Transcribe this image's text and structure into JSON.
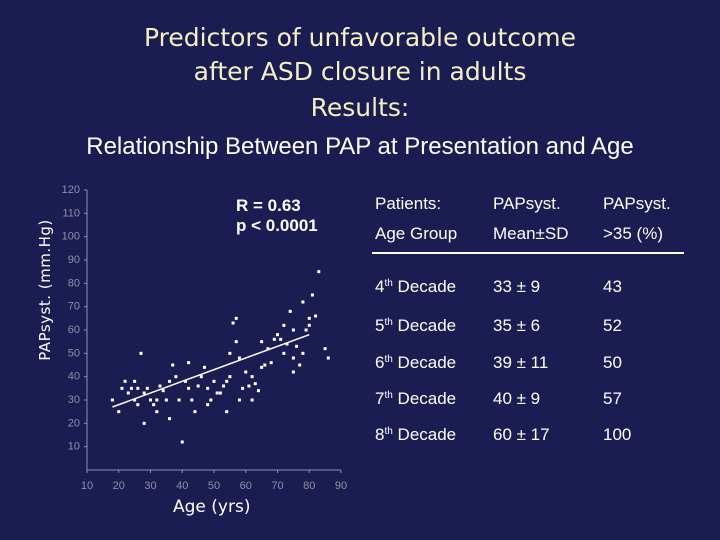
{
  "slide": {
    "title_line1": "Predictors of unfavorable outcome",
    "title_line2": "after ASD closure in adults",
    "title_line3": "Results:",
    "subtitle": "Relationship Between PAP at Presentation and Age"
  },
  "colors": {
    "background": "#1b1c52",
    "title": "#f4f0c4",
    "axis": "#8f90a8",
    "points": "#ffffff",
    "regression": "#ffffff"
  },
  "stats": {
    "r": "R = 0.63",
    "p": "p < 0.0001"
  },
  "table": {
    "headers": [
      [
        "Patients:",
        "Age Group"
      ],
      [
        "PAPsyst.",
        "Mean±SD"
      ],
      [
        "PAPsyst.",
        ">35 (%)"
      ]
    ],
    "rows": [
      {
        "ordinal": "4",
        "suffix": "th",
        "decade": " Decade",
        "mean": "33 ± 9",
        "pct": "43"
      },
      {
        "ordinal": "5",
        "suffix": "th",
        "decade": " Decade",
        "mean": "35 ± 6",
        "pct": "52"
      },
      {
        "ordinal": "6",
        "suffix": "th",
        "decade": " Decade",
        "mean": "39 ± 11",
        "pct": "50"
      },
      {
        "ordinal": "7",
        "suffix": "th",
        "decade": " Decade",
        "mean": "40 ± 9",
        "pct": "57"
      },
      {
        "ordinal": "8",
        "suffix": "th",
        "decade": " Decade",
        "mean": "60 ± 17",
        "pct": "100"
      }
    ]
  },
  "chart_data": {
    "type": "scatter",
    "xlabel": "Age (yrs)",
    "ylabel": "PAPsyst. (mm.Hg)",
    "xlim": [
      10,
      90
    ],
    "ylim": [
      0,
      120
    ],
    "xticks": [
      10,
      20,
      30,
      40,
      50,
      60,
      70,
      80,
      90
    ],
    "yticks": [
      10,
      20,
      30,
      40,
      50,
      60,
      70,
      80,
      90,
      100,
      110,
      120
    ],
    "grid": false,
    "regression": {
      "x": [
        18,
        80
      ],
      "y": [
        27,
        58
      ]
    },
    "points": [
      [
        18,
        30
      ],
      [
        20,
        25
      ],
      [
        21,
        35
      ],
      [
        22,
        38
      ],
      [
        23,
        33
      ],
      [
        24,
        35
      ],
      [
        25,
        30
      ],
      [
        25,
        38
      ],
      [
        26,
        35
      ],
      [
        26,
        28
      ],
      [
        27,
        50
      ],
      [
        28,
        33
      ],
      [
        28,
        20
      ],
      [
        29,
        35
      ],
      [
        30,
        30
      ],
      [
        31,
        28
      ],
      [
        32,
        30
      ],
      [
        32,
        25
      ],
      [
        33,
        36
      ],
      [
        34,
        34
      ],
      [
        35,
        30
      ],
      [
        36,
        38
      ],
      [
        36,
        22
      ],
      [
        37,
        45
      ],
      [
        38,
        40
      ],
      [
        39,
        30
      ],
      [
        40,
        12
      ],
      [
        41,
        38
      ],
      [
        42,
        46
      ],
      [
        42,
        35
      ],
      [
        43,
        30
      ],
      [
        44,
        25
      ],
      [
        45,
        36
      ],
      [
        46,
        40
      ],
      [
        47,
        44
      ],
      [
        48,
        35
      ],
      [
        48,
        28
      ],
      [
        49,
        30
      ],
      [
        50,
        38
      ],
      [
        51,
        33
      ],
      [
        52,
        33
      ],
      [
        53,
        36
      ],
      [
        54,
        38
      ],
      [
        54,
        25
      ],
      [
        55,
        40
      ],
      [
        55,
        50
      ],
      [
        56,
        63
      ],
      [
        57,
        55
      ],
      [
        57,
        65
      ],
      [
        58,
        48
      ],
      [
        58,
        30
      ],
      [
        59,
        35
      ],
      [
        60,
        42
      ],
      [
        61,
        36
      ],
      [
        62,
        40
      ],
      [
        62,
        30
      ],
      [
        63,
        37
      ],
      [
        64,
        34
      ],
      [
        65,
        44
      ],
      [
        65,
        55
      ],
      [
        66,
        45
      ],
      [
        67,
        52
      ],
      [
        68,
        46
      ],
      [
        69,
        56
      ],
      [
        70,
        58
      ],
      [
        71,
        56
      ],
      [
        72,
        50
      ],
      [
        72,
        62
      ],
      [
        73,
        54
      ],
      [
        74,
        68
      ],
      [
        75,
        42
      ],
      [
        75,
        48
      ],
      [
        75,
        60
      ],
      [
        76,
        53
      ],
      [
        77,
        45
      ],
      [
        78,
        50
      ],
      [
        78,
        72
      ],
      [
        79,
        60
      ],
      [
        80,
        62
      ],
      [
        80,
        65
      ],
      [
        81,
        75
      ],
      [
        82,
        66
      ],
      [
        83,
        85
      ],
      [
        85,
        52
      ],
      [
        86,
        48
      ]
    ]
  }
}
